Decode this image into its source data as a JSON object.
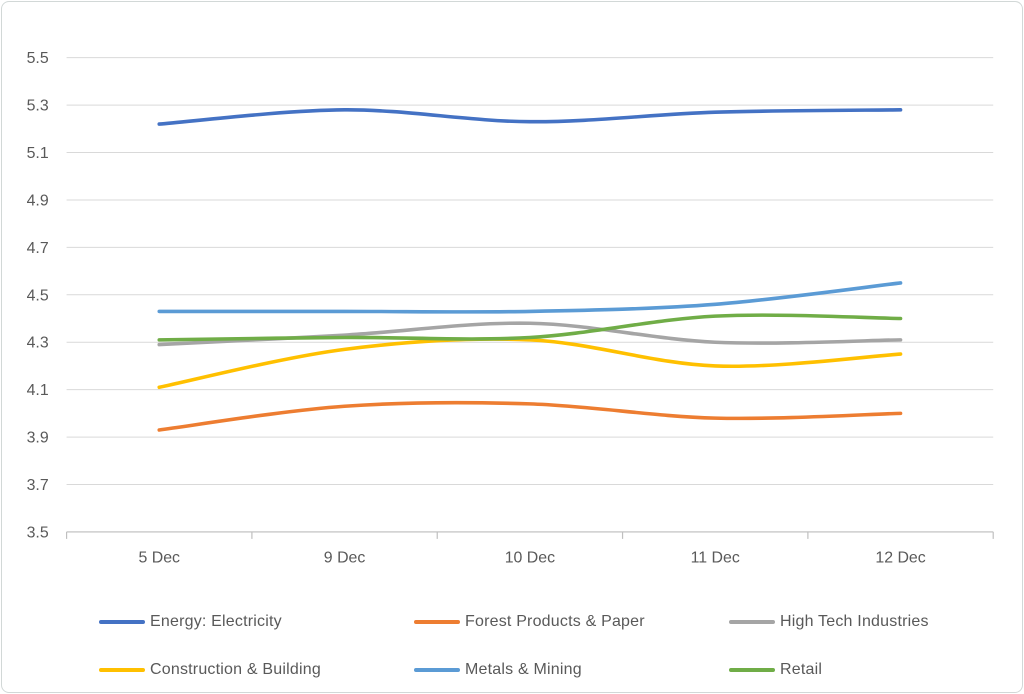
{
  "chart_data": {
    "type": "line",
    "title": "",
    "xlabel": "",
    "ylabel": "",
    "categories": [
      "5 Dec",
      "9 Dec",
      "10 Dec",
      "11 Dec",
      "12 Dec"
    ],
    "series": [
      {
        "name": "Energy: Electricity",
        "color": "#4472C4",
        "values": [
          5.22,
          5.28,
          5.23,
          5.27,
          5.28
        ]
      },
      {
        "name": "Forest Products & Paper",
        "color": "#ED7D31",
        "values": [
          3.93,
          4.03,
          4.04,
          3.98,
          4.0
        ]
      },
      {
        "name": "High Tech Industries",
        "color": "#A5A5A5",
        "values": [
          4.29,
          4.33,
          4.38,
          4.3,
          4.31
        ]
      },
      {
        "name": "Construction & Building",
        "color": "#FFC000",
        "values": [
          4.11,
          4.27,
          4.31,
          4.2,
          4.25
        ]
      },
      {
        "name": "Metals & Mining",
        "color": "#5B9BD5",
        "values": [
          4.43,
          4.43,
          4.43,
          4.46,
          4.55
        ]
      },
      {
        "name": "Retail",
        "color": "#70AD47",
        "values": [
          4.31,
          4.32,
          4.32,
          4.41,
          4.4
        ]
      }
    ],
    "ylim": [
      3.5,
      5.5
    ],
    "ytick_step": 0.2,
    "y_tick_labels": [
      "3.5",
      "3.7",
      "3.9",
      "4.1",
      "4.3",
      "4.5",
      "4.7",
      "4.9",
      "5.1",
      "5.3",
      "5.5"
    ],
    "grid": true,
    "line_style": "smooth",
    "legend_position": "bottom",
    "legend_rows": 2,
    "legend_columns": 3
  },
  "style": {
    "gridline_color": "#D9D9D9",
    "axis_line_color": "#BFBFBF",
    "tick_label_color": "#595959",
    "legend_text_color": "#595959",
    "frame_border_color": "#D2D8D7",
    "background_color": "#FFFFFF"
  }
}
